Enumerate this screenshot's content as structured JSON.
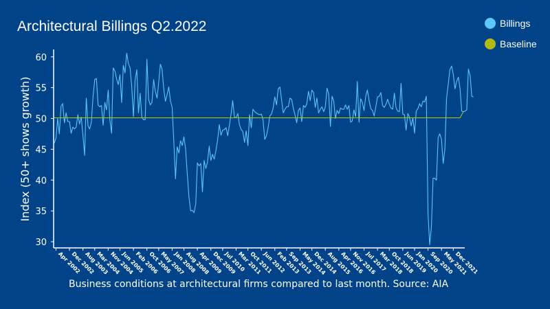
{
  "title": "Architectural Billings Q2.2022",
  "caption": "Business conditions at architectural firms compared to last month. Source: AIA",
  "colors": {
    "background": "#004389",
    "billings": "#5bc8f5",
    "baseline": "#b5b812",
    "axis": "#ffffff"
  },
  "legend": [
    {
      "label": "Billings",
      "color": "#5bc8f5"
    },
    {
      "label": "Baseline",
      "color": "#b5b812"
    }
  ],
  "chart_data": {
    "type": "line",
    "title": "Architectural Billings Q2.2022",
    "ylabel": "Index (50+ shows growth)",
    "xlabel": "",
    "ylim": [
      29,
      61.2
    ],
    "yticks": [
      30,
      35,
      40,
      45,
      50,
      55,
      60
    ],
    "x_start": "2002-03",
    "x_end": "2022-06",
    "xticks": [
      "Apr 2002",
      "Dec 2002",
      "Aug 2003",
      "Mar 2004",
      "Nov 2004",
      "Jun 2005",
      "Feb 2006",
      "Oct 2006",
      "May 2007",
      "Jan 2008",
      "Aug 2008",
      "Apr 2009",
      "Dec 2009",
      "Jul 2010",
      "Mar 2011",
      "Oct 2011",
      "Jun 2012",
      "Feb 2013",
      "Sep 2013",
      "May 2014",
      "Dec 2014",
      "Aug 2015",
      "Apr 2016",
      "Nov 2016",
      "Jul 2017",
      "Mar 2018",
      "Oct 2018",
      "Jun 2019",
      "Jan 2020",
      "Sep 2020",
      "May 2021",
      "Dec 2021"
    ],
    "grid": false,
    "legend_position": "top-right",
    "series": [
      {
        "name": "Billings",
        "values": [
          46.0,
          46.8,
          50.0,
          47.5,
          52.0,
          52.4,
          49.3,
          50.9,
          49.5,
          49.5,
          47.6,
          48.6,
          48.3,
          48.6,
          50.6,
          49.1,
          50.2,
          47.3,
          44.0,
          53.3,
          48.8,
          48.3,
          49.4,
          53.5,
          56.3,
          56.5,
          52.2,
          51.9,
          52.1,
          48.9,
          52.6,
          51.4,
          54.6,
          49.8,
          47.6,
          58.2,
          57.7,
          56.4,
          55.5,
          57.1,
          52.6,
          58.6,
          57.4,
          60.6,
          58.9,
          58.2,
          55.2,
          50.3,
          56.2,
          57.9,
          50.9,
          54.1,
          50.2,
          49.8,
          49.8,
          59.6,
          53.1,
          52.2,
          52.6,
          56.3,
          54.4,
          53.3,
          55.8,
          58.8,
          58.0,
          54.8,
          52.8,
          53.9,
          55.1,
          52.8,
          51.8,
          46.3,
          40.2,
          45.4,
          44.4,
          46.4,
          45.6,
          47.0,
          45.0,
          41.0,
          37.2,
          35.0,
          35.1,
          34.7,
          36.1,
          42.8,
          42.3,
          42.7,
          38.1,
          43.2,
          41.9,
          42.9,
          45.5,
          43.2,
          44.2,
          43.4,
          44.8,
          46.5,
          49.0,
          47.3,
          48.1,
          48.2,
          48.5,
          47.2,
          48.9,
          50.7,
          52.9,
          50.2,
          50.1,
          50.8,
          49.0,
          48.2,
          47.9,
          46.1,
          48.0,
          45.6,
          50.6,
          48.5,
          51.5,
          51.1,
          50.9,
          50.7,
          50.6,
          50.7,
          49.8,
          46.6,
          47.2,
          48.5,
          50.4,
          50.7,
          51.7,
          53.5,
          52.2,
          54.8,
          55.1,
          53.0,
          50.9,
          51.5,
          51.9,
          51.9,
          53.3,
          53.1,
          51.6,
          50.6,
          49.3,
          51.3,
          51.7,
          49.5,
          52.1,
          51.8,
          52.4,
          54.4,
          52.9,
          54.6,
          54.2,
          51.8,
          53.3,
          50.9,
          51.5,
          51.9,
          51.1,
          51.9,
          54.9,
          54.0,
          48.7,
          53.6,
          52.8,
          50.0,
          51.3,
          50.8,
          51.7,
          51.5,
          51.5,
          52.2,
          51.5,
          52.1,
          49.4,
          49.6,
          51.4,
          50.3,
          56.0,
          49.4,
          53.2,
          52.6,
          51.3,
          53.6,
          54.6,
          52.9,
          51.6,
          51.3,
          50.4,
          51.9,
          53.5,
          53.6,
          54.2,
          52.1,
          51.8,
          52.3,
          53.1,
          52.3,
          51.7,
          51.5,
          54.1,
          51.7,
          51.2,
          51.1,
          55.7,
          50.7,
          50.6,
          48.1,
          50.8,
          50.2,
          48.8,
          50.1,
          47.6,
          51.2,
          51.6,
          52.4,
          51.9,
          52.8,
          52.7,
          53.6,
          34.5,
          29.5,
          32.4,
          40.3,
          40.3,
          40.0,
          46.9,
          47.5,
          46.6,
          42.7,
          45.0,
          53.2,
          55.6,
          57.9,
          58.5,
          57.2,
          54.8,
          56.0,
          56.7,
          54.9,
          51.2,
          51.1,
          51.2,
          51.4,
          58.0,
          57.0,
          53.6,
          53.5
        ],
        "color": "#5bc8f5"
      },
      {
        "name": "Baseline",
        "values": [
          50.1,
          50.1,
          51.1
        ],
        "x": [
          "2002-03",
          "2022-04",
          "2022-06"
        ],
        "color": "#b5b812"
      }
    ]
  }
}
